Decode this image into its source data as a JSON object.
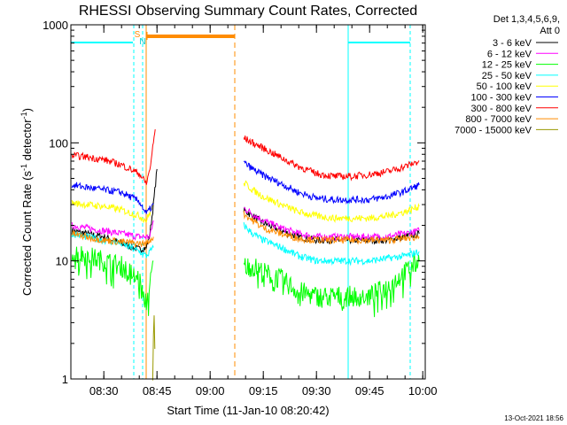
{
  "chart_data": {
    "type": "line",
    "title": "RHESSI Observing Summary Count Rates, Corrected",
    "ylabel_parts": [
      "Corrected Count Rate (s",
      "-1",
      " detector",
      "-1",
      ")"
    ],
    "xlabel": "Start Time (11-Jan-10 08:20:42)",
    "y_scale": "log",
    "ylim": [
      1,
      1000
    ],
    "y_ticks": [
      "1",
      "10",
      "100",
      "1000"
    ],
    "x_ticks": [
      "08:30",
      "08:45",
      "09:00",
      "09:15",
      "09:30",
      "09:45",
      "10:00"
    ],
    "x_tick_minutes": [
      510,
      525,
      540,
      555,
      570,
      585,
      600
    ],
    "xlim_minutes": [
      500.7,
      600.7
    ],
    "legend_header": [
      "Det 1,3,4,5,6,9,",
      "Att 0"
    ],
    "timestamp": "13-Oct-2021 18:56",
    "flags": [
      "S",
      "N"
    ],
    "series": [
      {
        "name": "3 - 6 keV",
        "color": "#000000",
        "segments": [
          {
            "x": [
              501,
              505,
              510,
              515,
              520,
              522,
              523,
              524,
              525
            ],
            "y": [
              18,
              17,
              16,
              14,
              12.5,
              13,
              17,
              30,
              60
            ]
          },
          {
            "x": [
              549.5,
              552,
              555,
              560,
              565,
              570,
              575,
              580,
              585,
              590,
              595,
              599
            ],
            "y": [
              27,
              24,
              21,
              18,
              16,
              15,
              15,
              15,
              15,
              15,
              16,
              17
            ]
          }
        ]
      },
      {
        "name": "6 - 12 keV",
        "color": "#ff00ff",
        "segments": [
          {
            "x": [
              501,
              505,
              510,
              515,
              520,
              523,
              524
            ],
            "y": [
              20,
              19,
              18,
              17,
              16,
              16,
              22
            ]
          },
          {
            "x": [
              549.5,
              552,
              555,
              560,
              565,
              570,
              575,
              580,
              585,
              590,
              595,
              599
            ],
            "y": [
              28,
              25,
              22,
              19,
              17,
              16,
              16,
              16,
              16,
              16,
              17,
              18
            ]
          }
        ]
      },
      {
        "name": "12 - 25 keV",
        "color": "#00ff00",
        "segments": [
          {
            "x": [
              501,
              505,
              510,
              515,
              520,
              521,
              522,
              523,
              524
            ],
            "y": [
              12,
              11,
              10,
              9,
              7,
              5,
              4.5,
              6,
              10
            ]
          },
          {
            "x": [
              549.5,
              552,
              555,
              560,
              565,
              570,
              575,
              580,
              585,
              590,
              595,
              599
            ],
            "y": [
              9,
              9,
              8,
              7,
              5.5,
              5,
              5,
              5,
              5,
              6,
              8,
              10
            ]
          }
        ]
      },
      {
        "name": "25 - 50 keV",
        "color": "#00ffff",
        "segments": [
          {
            "x": [
              501,
              505,
              510,
              515,
              520,
              522,
              524
            ],
            "y": [
              17,
              16,
              15,
              14,
              12,
              11,
              13
            ]
          },
          {
            "x": [
              549.5,
              552,
              555,
              560,
              565,
              570,
              575,
              580,
              585,
              590,
              595,
              599
            ],
            "y": [
              20,
              17,
              15,
              13,
              11,
              10,
              10,
              10,
              10,
              10.5,
              11,
              12
            ]
          }
        ]
      },
      {
        "name": "50 - 100 keV",
        "color": "#ffff00",
        "segments": [
          {
            "x": [
              501,
              505,
              510,
              515,
              520,
              522,
              524
            ],
            "y": [
              31,
              30,
              29,
              27,
              24,
              22,
              30
            ]
          },
          {
            "x": [
              549.5,
              552,
              555,
              560,
              565,
              570,
              575,
              580,
              585,
              590,
              595,
              599
            ],
            "y": [
              46,
              40,
              35,
              30,
              26,
              24,
              23,
              23,
              23,
              24,
              26,
              29
            ]
          }
        ]
      },
      {
        "name": "100 - 300 keV",
        "color": "#0000ff",
        "segments": [
          {
            "x": [
              501,
              505,
              510,
              515,
              520,
              522,
              524
            ],
            "y": [
              44,
              42,
              40,
              38,
              32,
              25,
              30
            ]
          },
          {
            "x": [
              549.5,
              552,
              555,
              560,
              565,
              570,
              575,
              580,
              585,
              590,
              595,
              599
            ],
            "y": [
              68,
              60,
              53,
              45,
              38,
              34,
              33,
              33,
              33,
              35,
              39,
              44
            ]
          }
        ]
      },
      {
        "name": "300 - 800 keV",
        "color": "#ff0000",
        "segments": [
          {
            "x": [
              501,
              505,
              510,
              515,
              520,
              522,
              523,
              524,
              524.5
            ],
            "y": [
              78,
              76,
              72,
              65,
              55,
              45,
              60,
              100,
              130
            ]
          },
          {
            "x": [
              549.5,
              552,
              555,
              560,
              565,
              570,
              575,
              580,
              585,
              590,
              595,
              599
            ],
            "y": [
              110,
              100,
              90,
              75,
              63,
              55,
              52,
              52,
              54,
              57,
              63,
              70
            ]
          }
        ]
      },
      {
        "name": "800 - 7000 keV",
        "color": "#ff8c00",
        "segments": [
          {
            "x": [
              501,
              505,
              510,
              515,
              520,
              522,
              524
            ],
            "y": [
              17,
              16,
              15,
              14.5,
              14,
              14,
              16
            ]
          },
          {
            "x": [
              549.5,
              552,
              555,
              560,
              565,
              570,
              575,
              580,
              585,
              590,
              595,
              599
            ],
            "y": [
              25,
              22,
              19,
              17,
              15.5,
              15,
              15,
              15,
              15,
              15,
              15.5,
              16
            ]
          }
        ]
      },
      {
        "name": "7000 - 15000 keV",
        "color": "#999900",
        "segments": [
          {
            "x": [
              523.8,
              524,
              524.2,
              524.4
            ],
            "y": [
              1,
              2.5,
              3.5,
              1.8
            ]
          }
        ]
      }
    ]
  }
}
